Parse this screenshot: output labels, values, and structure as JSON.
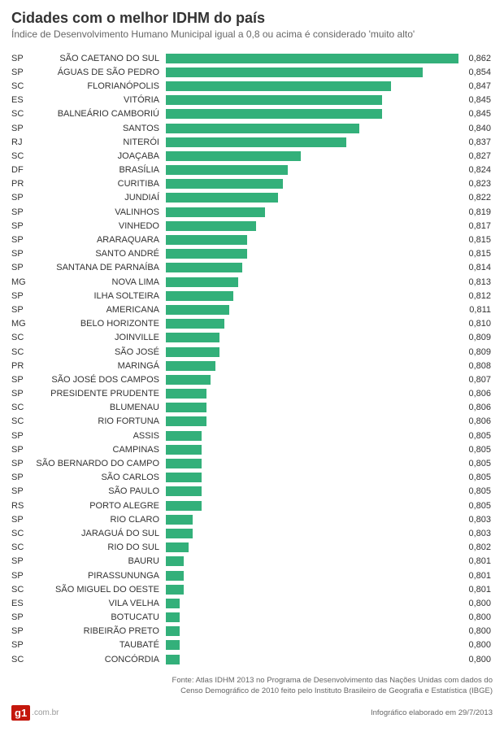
{
  "chart": {
    "type": "bar",
    "title": "Cidades com o melhor IDHM do país",
    "subtitle": "Índice de Desenvolvimento Humano Municipal igual a 0,8 ou acima é considerado 'muito alto'",
    "bar_color": "#33b07a",
    "text_color": "#333333",
    "subtitle_color": "#666666",
    "background_color": "#ffffff",
    "title_fontsize": 18,
    "subtitle_fontsize": 12,
    "label_fontsize": 11,
    "xlim": [
      0.8,
      0.862
    ],
    "bar_scale_min": 0.797,
    "bar_scale_max": 0.862,
    "rows": [
      {
        "state": "SP",
        "city": "SÃO CAETANO DO SUL",
        "value": 0.862,
        "label": "0,862"
      },
      {
        "state": "SP",
        "city": "ÁGUAS DE SÃO PEDRO",
        "value": 0.854,
        "label": "0,854"
      },
      {
        "state": "SC",
        "city": "FLORIANÓPOLIS",
        "value": 0.847,
        "label": "0,847"
      },
      {
        "state": "ES",
        "city": "VITÓRIA",
        "value": 0.845,
        "label": "0,845"
      },
      {
        "state": "SC",
        "city": "BALNEÁRIO CAMBORIÚ",
        "value": 0.845,
        "label": "0,845"
      },
      {
        "state": "SP",
        "city": "SANTOS",
        "value": 0.84,
        "label": "0,840"
      },
      {
        "state": "RJ",
        "city": "NITERÓI",
        "value": 0.837,
        "label": "0,837"
      },
      {
        "state": "SC",
        "city": "JOAÇABA",
        "value": 0.827,
        "label": "0,827"
      },
      {
        "state": "DF",
        "city": "BRASÍLIA",
        "value": 0.824,
        "label": "0,824"
      },
      {
        "state": "PR",
        "city": "CURITIBA",
        "value": 0.823,
        "label": "0,823"
      },
      {
        "state": "SP",
        "city": "JUNDIAÍ",
        "value": 0.822,
        "label": "0,822"
      },
      {
        "state": "SP",
        "city": "VALINHOS",
        "value": 0.819,
        "label": "0,819"
      },
      {
        "state": "SP",
        "city": "VINHEDO",
        "value": 0.817,
        "label": "0,817"
      },
      {
        "state": "SP",
        "city": "ARARAQUARA",
        "value": 0.815,
        "label": "0,815"
      },
      {
        "state": "SP",
        "city": "SANTO ANDRÉ",
        "value": 0.815,
        "label": "0,815"
      },
      {
        "state": "SP",
        "city": "SANTANA DE PARNAÍBA",
        "value": 0.814,
        "label": "0,814"
      },
      {
        "state": "MG",
        "city": "NOVA LIMA",
        "value": 0.813,
        "label": "0,813"
      },
      {
        "state": "SP",
        "city": "ILHA SOLTEIRA",
        "value": 0.812,
        "label": "0,812"
      },
      {
        "state": "SP",
        "city": "AMERICANA",
        "value": 0.811,
        "label": "0,811"
      },
      {
        "state": "MG",
        "city": "BELO HORIZONTE",
        "value": 0.81,
        "label": "0,810"
      },
      {
        "state": "SC",
        "city": "JOINVILLE",
        "value": 0.809,
        "label": "0,809"
      },
      {
        "state": "SC",
        "city": "SÃO JOSÉ",
        "value": 0.809,
        "label": "0,809"
      },
      {
        "state": "PR",
        "city": "MARINGÁ",
        "value": 0.808,
        "label": "0,808"
      },
      {
        "state": "SP",
        "city": "SÃO JOSÉ DOS CAMPOS",
        "value": 0.807,
        "label": "0,807"
      },
      {
        "state": "SP",
        "city": "PRESIDENTE PRUDENTE",
        "value": 0.806,
        "label": "0,806"
      },
      {
        "state": "SC",
        "city": "BLUMENAU",
        "value": 0.806,
        "label": "0,806"
      },
      {
        "state": "SC",
        "city": "RIO FORTUNA",
        "value": 0.806,
        "label": "0,806"
      },
      {
        "state": "SP",
        "city": "ASSIS",
        "value": 0.805,
        "label": "0,805"
      },
      {
        "state": "SP",
        "city": "CAMPINAS",
        "value": 0.805,
        "label": "0,805"
      },
      {
        "state": "SP",
        "city": "SÃO BERNARDO DO CAMPO",
        "value": 0.805,
        "label": "0,805"
      },
      {
        "state": "SP",
        "city": "SÃO CARLOS",
        "value": 0.805,
        "label": "0,805"
      },
      {
        "state": "SP",
        "city": "SÃO PAULO",
        "value": 0.805,
        "label": "0,805"
      },
      {
        "state": "RS",
        "city": "PORTO ALEGRE",
        "value": 0.805,
        "label": "0,805"
      },
      {
        "state": "SP",
        "city": "RIO CLARO",
        "value": 0.803,
        "label": "0,803"
      },
      {
        "state": "SC",
        "city": "JARAGUÁ DO SUL",
        "value": 0.803,
        "label": "0,803"
      },
      {
        "state": "SC",
        "city": "RIO DO SUL",
        "value": 0.802,
        "label": "0,802"
      },
      {
        "state": "SP",
        "city": "BAURU",
        "value": 0.801,
        "label": "0,801"
      },
      {
        "state": "SP",
        "city": "PIRASSUNUNGA",
        "value": 0.801,
        "label": "0,801"
      },
      {
        "state": "SC",
        "city": "SÃO MIGUEL DO OESTE",
        "value": 0.801,
        "label": "0,801"
      },
      {
        "state": "ES",
        "city": "VILA VELHA",
        "value": 0.8,
        "label": "0,800"
      },
      {
        "state": "SP",
        "city": "BOTUCATU",
        "value": 0.8,
        "label": "0,800"
      },
      {
        "state": "SP",
        "city": "RIBEIRÃO PRETO",
        "value": 0.8,
        "label": "0,800"
      },
      {
        "state": "SP",
        "city": "TAUBATÉ",
        "value": 0.8,
        "label": "0,800"
      },
      {
        "state": "SC",
        "city": "CONCÓRDIA",
        "value": 0.8,
        "label": "0,800"
      }
    ]
  },
  "source": {
    "line1": "Fonte: Atlas IDHM 2013 no Programa de Desenvolvimento das Nações Unidas com dados do",
    "line2": "Censo Demográfico de 2010 feito pelo Instituto Brasileiro de Geografia e Estatística (IBGE)"
  },
  "logo": {
    "box": "g1",
    "suffix": ".com.br"
  },
  "credit": "Infográfico elaborado em 29/7/2013"
}
